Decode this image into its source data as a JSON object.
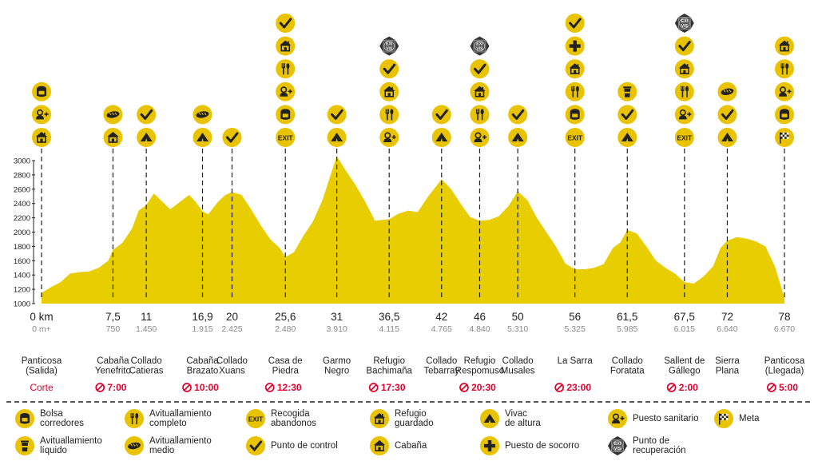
{
  "colors": {
    "fill": "#E8CE00",
    "icon_bg": "#E9C300",
    "icon_fg": "#222222",
    "cut": "#E4002B",
    "ink": "#222222",
    "muted": "#888888"
  },
  "chart_data": {
    "type": "area",
    "title": "",
    "y_ticks": [
      1000,
      1200,
      1400,
      1600,
      1800,
      2000,
      2200,
      2400,
      2600,
      2800,
      3000
    ],
    "ylim": [
      1000,
      3080
    ],
    "xlim": [
      0,
      78
    ],
    "profile": [
      [
        0,
        1150
      ],
      [
        1,
        1230
      ],
      [
        2,
        1300
      ],
      [
        3,
        1420
      ],
      [
        4,
        1440
      ],
      [
        5,
        1450
      ],
      [
        6,
        1500
      ],
      [
        7,
        1600
      ],
      [
        7.5,
        1750
      ],
      [
        8.5,
        1850
      ],
      [
        9.5,
        2050
      ],
      [
        10.2,
        2300
      ],
      [
        11,
        2380
      ],
      [
        11.8,
        2540
      ],
      [
        12.5,
        2450
      ],
      [
        13.5,
        2320
      ],
      [
        14.5,
        2420
      ],
      [
        15.5,
        2520
      ],
      [
        16.2,
        2420
      ],
      [
        16.9,
        2290
      ],
      [
        17.5,
        2250
      ],
      [
        18.5,
        2420
      ],
      [
        19.3,
        2520
      ],
      [
        20,
        2560
      ],
      [
        21,
        2520
      ],
      [
        22,
        2320
      ],
      [
        23,
        2100
      ],
      [
        24,
        1900
      ],
      [
        25,
        1780
      ],
      [
        25.6,
        1650
      ],
      [
        26.5,
        1720
      ],
      [
        27.5,
        1950
      ],
      [
        28.5,
        2150
      ],
      [
        29.5,
        2450
      ],
      [
        30.5,
        2860
      ],
      [
        31,
        3060
      ],
      [
        32,
        2850
      ],
      [
        33,
        2650
      ],
      [
        34,
        2420
      ],
      [
        35,
        2160
      ],
      [
        36.5,
        2180
      ],
      [
        37.5,
        2260
      ],
      [
        38.5,
        2300
      ],
      [
        39.5,
        2280
      ],
      [
        40.5,
        2480
      ],
      [
        42,
        2740
      ],
      [
        43,
        2600
      ],
      [
        44,
        2400
      ],
      [
        45,
        2210
      ],
      [
        46,
        2160
      ],
      [
        47,
        2170
      ],
      [
        48,
        2220
      ],
      [
        49,
        2360
      ],
      [
        50,
        2570
      ],
      [
        51,
        2450
      ],
      [
        52,
        2200
      ],
      [
        53,
        2000
      ],
      [
        54,
        1800
      ],
      [
        55,
        1560
      ],
      [
        56,
        1480
      ],
      [
        57,
        1480
      ],
      [
        58,
        1500
      ],
      [
        59,
        1550
      ],
      [
        60,
        1780
      ],
      [
        60.8,
        1860
      ],
      [
        61.5,
        2030
      ],
      [
        62.5,
        1980
      ],
      [
        63.5,
        1800
      ],
      [
        64.5,
        1600
      ],
      [
        65.5,
        1500
      ],
      [
        66.5,
        1420
      ],
      [
        67.5,
        1300
      ],
      [
        68.5,
        1280
      ],
      [
        69.5,
        1380
      ],
      [
        70.5,
        1520
      ],
      [
        71.3,
        1780
      ],
      [
        72,
        1880
      ],
      [
        73,
        1930
      ],
      [
        74,
        1910
      ],
      [
        75,
        1870
      ],
      [
        76,
        1800
      ],
      [
        77,
        1520
      ],
      [
        78,
        1080
      ]
    ],
    "stations": [
      {
        "km": "0 km",
        "x": 0,
        "dplus": "0 m+",
        "name": "Panticosa\n(Salida)",
        "cut": "",
        "icons": [
          "bag",
          "medic",
          "refuge"
        ]
      },
      {
        "km": "7,5",
        "x": 7.5,
        "dplus": "750",
        "name": "Cabaña\nYenefrito",
        "cut": "7:00",
        "icons": [
          "bread",
          "hut"
        ]
      },
      {
        "km": "11",
        "x": 11,
        "dplus": "1.450",
        "name": "Collado\nCatieras",
        "cut": "",
        "icons": [
          "check",
          "tent"
        ]
      },
      {
        "km": "16,9",
        "x": 16.9,
        "dplus": "1.915",
        "name": "Cabaña\nBrazato",
        "cut": "10:00",
        "icons": [
          "bread",
          "tent"
        ]
      },
      {
        "km": "20",
        "x": 20,
        "dplus": "2.425",
        "name": "Collado\nXuans",
        "cut": "",
        "icons": [
          "check"
        ]
      },
      {
        "km": "25,6",
        "x": 25.6,
        "dplus": "2.480",
        "name": "Casa de\nPiedra",
        "cut": "12:30",
        "icons": [
          "check",
          "refuge",
          "fork",
          "medic",
          "bag",
          "exit"
        ]
      },
      {
        "km": "31",
        "x": 31,
        "dplus": "3.910",
        "name": "Garmo\nNegro",
        "cut": "",
        "icons": [
          "check",
          "tent"
        ]
      },
      {
        "km": "36,5",
        "x": 36.5,
        "dplus": "4.115",
        "name": "Refugio\nBachimaña",
        "cut": "17:30",
        "icons": [
          "recovery",
          "check",
          "refuge",
          "fork",
          "medic"
        ]
      },
      {
        "km": "42",
        "x": 42,
        "dplus": "4.765",
        "name": "Collado\nTebarray",
        "cut": "",
        "icons": [
          "check",
          "tent"
        ]
      },
      {
        "km": "46",
        "x": 46,
        "dplus": "4.840",
        "name": "Refugio\nRespomuso",
        "cut": "20:30",
        "icons": [
          "recovery",
          "check",
          "refuge",
          "fork",
          "medic"
        ]
      },
      {
        "km": "50",
        "x": 50,
        "dplus": "5.310",
        "name": "Collado\nMusales",
        "cut": "",
        "icons": [
          "check",
          "tent"
        ]
      },
      {
        "km": "56",
        "x": 56,
        "dplus": "5.325",
        "name": "La Sarra",
        "cut": "23:00",
        "icons": [
          "check",
          "plus",
          "refuge",
          "fork",
          "bag",
          "exit"
        ]
      },
      {
        "km": "61,5",
        "x": 61.5,
        "dplus": "5.985",
        "name": "Collado\nForatata",
        "cut": "",
        "icons": [
          "cup",
          "check",
          "tent"
        ]
      },
      {
        "km": "67,5",
        "x": 67.5,
        "dplus": "6.015",
        "name": "Sallent de\nGállego",
        "cut": "2:00",
        "icons": [
          "recovery",
          "check",
          "refuge",
          "fork",
          "medic",
          "exit"
        ]
      },
      {
        "km": "72",
        "x": 72,
        "dplus": "6.640",
        "name": "Sierra\nPlana",
        "cut": "",
        "icons": [
          "bread",
          "check",
          "tent"
        ]
      },
      {
        "km": "78",
        "x": 78,
        "dplus": "6.670",
        "name": "Panticosa\n(Llegada)",
        "cut": "5:00",
        "icons": [
          "refuge",
          "fork",
          "medic",
          "bag",
          "flag"
        ]
      }
    ],
    "cut_label": "Corte",
    "exit_text": "EXIT",
    "recovery_text": "EXI\nVIS"
  },
  "legend": [
    {
      "icon": "bag",
      "label": "Bolsa\ncorredores"
    },
    {
      "icon": "fork",
      "label": "Avituallamiento\ncompleto"
    },
    {
      "icon": "exit",
      "label": "Recogida\nabandonos"
    },
    {
      "icon": "refuge",
      "label": "Refugio\nguardado"
    },
    {
      "icon": "tent",
      "label": "Vivac\nde altura"
    },
    {
      "icon": "medic",
      "label": "Puesto sanitario"
    },
    {
      "icon": "flag",
      "label": "Meta"
    },
    {
      "icon": "cup",
      "label": "Avituallamiento\nlíquido"
    },
    {
      "icon": "bread",
      "label": "Avituallamiento\nmedio"
    },
    {
      "icon": "check",
      "label": "Punto de control"
    },
    {
      "icon": "hut",
      "label": "Cabaña"
    },
    {
      "icon": "plus",
      "label": "Puesto de socorro"
    },
    {
      "icon": "recovery",
      "label": "Punto de\nrecuperación"
    }
  ]
}
